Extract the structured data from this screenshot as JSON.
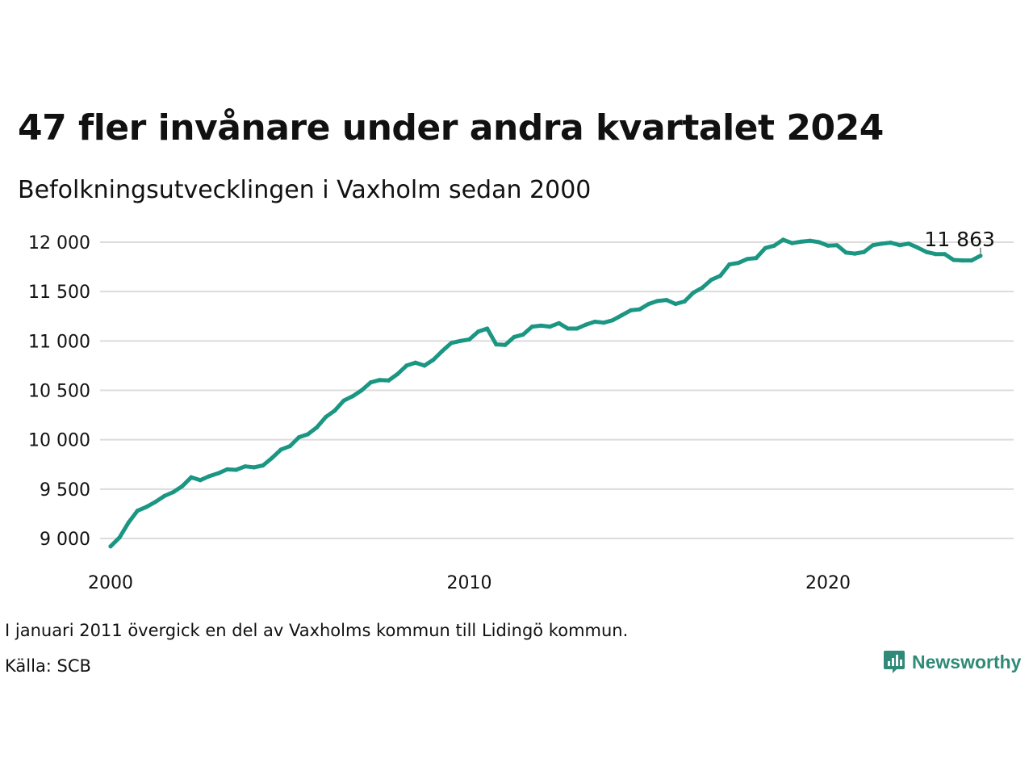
{
  "title": "47 fler invånare under andra kvartalet 2024",
  "subtitle": "Befolkningsutvecklingen i Vaxholm sedan 2000",
  "note": "I januari 2011 övergick en del av Vaxholms kommun till Lidingö kommun.",
  "source": "Källa: SCB",
  "brand": {
    "name": "Newsworthy",
    "icon": "newsworthy-logo-icon",
    "color": "#2f8a78"
  },
  "chart_data": {
    "type": "line",
    "line_color": "#1a9682",
    "grid": true,
    "xlim": [
      2000,
      2025.2
    ],
    "ylim": [
      8800,
      12100
    ],
    "x_ticks": [
      2000,
      2010,
      2020
    ],
    "y_ticks": [
      9000,
      9500,
      10000,
      10500,
      11000,
      11500,
      12000
    ],
    "x_tick_labels": [
      "2000",
      "2010",
      "2020"
    ],
    "y_tick_labels": [
      "9 000",
      "9 500",
      "10 000",
      "10 500",
      "11 000",
      "11 500",
      "12 000"
    ],
    "end_label": "11 863",
    "series": [
      {
        "x": [
          2000.0,
          2000.25,
          2000.5,
          2000.75,
          2001.0,
          2001.25,
          2001.5,
          2001.75,
          2002.0,
          2002.25,
          2002.5,
          2002.75,
          2003.0,
          2003.25,
          2003.5,
          2003.75,
          2004.0,
          2004.25,
          2004.5,
          2004.75,
          2005.0,
          2005.25,
          2005.5,
          2005.75,
          2006.0,
          2006.25,
          2006.5,
          2006.75,
          2007.0,
          2007.25,
          2007.5,
          2007.75,
          2008.0,
          2008.25,
          2008.5,
          2008.75,
          2009.0,
          2009.25,
          2009.5,
          2009.75,
          2010.0,
          2010.25,
          2010.5,
          2010.75,
          2011.0,
          2011.25,
          2011.5,
          2011.75,
          2012.0,
          2012.25,
          2012.5,
          2012.75,
          2013.0,
          2013.25,
          2013.5,
          2013.75,
          2014.0,
          2014.25,
          2014.5,
          2014.75,
          2015.0,
          2015.25,
          2015.5,
          2015.75,
          2016.0,
          2016.25,
          2016.5,
          2016.75,
          2017.0,
          2017.25,
          2017.5,
          2017.75,
          2018.0,
          2018.25,
          2018.5,
          2018.75,
          2019.0,
          2019.25,
          2019.5,
          2019.75,
          2020.0,
          2020.25,
          2020.5,
          2020.75,
          2021.0,
          2021.25,
          2021.5,
          2021.75,
          2022.0,
          2022.25,
          2022.5,
          2022.75,
          2023.0,
          2023.25,
          2023.5,
          2023.75,
          2024.0,
          2024.25
        ],
        "values": [
          8920,
          9010,
          9160,
          9280,
          9320,
          9370,
          9430,
          9470,
          9530,
          9620,
          9590,
          9630,
          9660,
          9700,
          9695,
          9730,
          9720,
          9740,
          9815,
          9900,
          9935,
          10025,
          10055,
          10125,
          10230,
          10295,
          10395,
          10440,
          10500,
          10580,
          10605,
          10600,
          10665,
          10750,
          10780,
          10750,
          10810,
          10900,
          10980,
          11000,
          11015,
          11095,
          11125,
          10965,
          10960,
          11040,
          11065,
          11145,
          11155,
          11145,
          11180,
          11125,
          11125,
          11165,
          11195,
          11185,
          11210,
          11260,
          11310,
          11320,
          11375,
          11405,
          11415,
          11375,
          11400,
          11490,
          11540,
          11620,
          11660,
          11775,
          11790,
          11830,
          11840,
          11940,
          11965,
          12025,
          11990,
          12005,
          12015,
          12000,
          11965,
          11970,
          11895,
          11885,
          11900,
          11970,
          11985,
          11995,
          11970,
          11985,
          11945,
          11900,
          11880,
          11880,
          11820,
          11815,
          11815,
          11863
        ]
      }
    ]
  }
}
